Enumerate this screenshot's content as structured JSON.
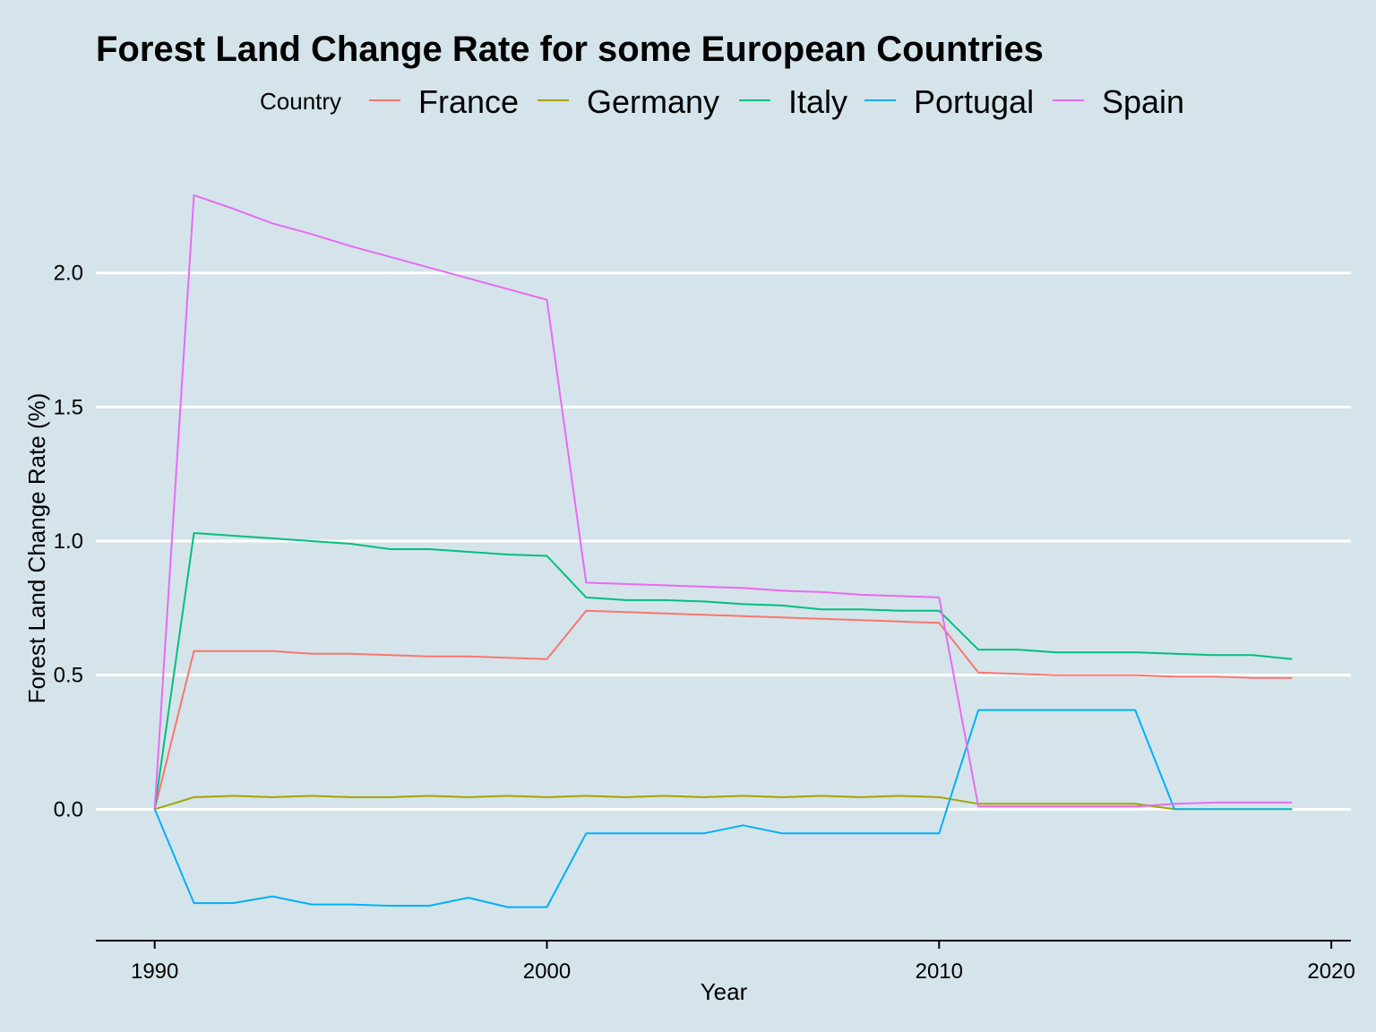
{
  "chart_data": {
    "type": "line",
    "title": "Forest Land Change Rate for some European Countries",
    "xlabel": "Year",
    "ylabel": "Forest Land Change Rate (%)",
    "legend_title": "Country",
    "legend_position": "top",
    "grid": "horizontal major lines only",
    "xlim": [
      1988.5,
      2020.5
    ],
    "ylim": [
      -0.49,
      2.45
    ],
    "x_ticks": [
      1990,
      2000,
      2010,
      2020
    ],
    "y_ticks": [
      0.0,
      0.5,
      1.0,
      1.5,
      2.0
    ],
    "y_tick_labels": [
      "0.0",
      "0.5",
      "1.0",
      "1.5",
      "2.0"
    ],
    "x": [
      1990,
      1991,
      1992,
      1993,
      1994,
      1995,
      1996,
      1997,
      1998,
      1999,
      2000,
      2001,
      2002,
      2003,
      2004,
      2005,
      2006,
      2007,
      2008,
      2009,
      2010,
      2011,
      2012,
      2013,
      2014,
      2015,
      2016,
      2017,
      2018,
      2019
    ],
    "series": [
      {
        "name": "France",
        "color": "#F8766D",
        "values": [
          0,
          0.59,
          0.59,
          0.59,
          0.58,
          0.58,
          0.575,
          0.57,
          0.57,
          0.565,
          0.56,
          0.74,
          0.735,
          0.73,
          0.725,
          0.72,
          0.715,
          0.71,
          0.705,
          0.7,
          0.695,
          0.51,
          0.505,
          0.5,
          0.5,
          0.5,
          0.495,
          0.495,
          0.49,
          0.49
        ]
      },
      {
        "name": "Germany",
        "color": "#A3A500",
        "values": [
          0,
          0.045,
          0.05,
          0.045,
          0.05,
          0.045,
          0.045,
          0.05,
          0.045,
          0.05,
          0.045,
          0.05,
          0.045,
          0.05,
          0.045,
          0.05,
          0.045,
          0.05,
          0.045,
          0.05,
          0.045,
          0.02,
          0.02,
          0.02,
          0.02,
          0.02,
          0.0,
          0.0,
          0.0,
          0.0
        ]
      },
      {
        "name": "Italy",
        "color": "#00BF7D",
        "values": [
          0,
          1.03,
          1.02,
          1.01,
          1.0,
          0.99,
          0.97,
          0.97,
          0.96,
          0.95,
          0.945,
          0.79,
          0.78,
          0.78,
          0.775,
          0.765,
          0.76,
          0.745,
          0.745,
          0.74,
          0.74,
          0.595,
          0.595,
          0.585,
          0.585,
          0.585,
          0.58,
          0.575,
          0.575,
          0.56
        ]
      },
      {
        "name": "Portugal",
        "color": "#00B0F6",
        "values": [
          0,
          -0.35,
          -0.35,
          -0.325,
          -0.355,
          -0.355,
          -0.36,
          -0.36,
          -0.33,
          -0.365,
          -0.365,
          -0.09,
          -0.09,
          -0.09,
          -0.09,
          -0.06,
          -0.09,
          -0.09,
          -0.09,
          -0.09,
          -0.09,
          0.37,
          0.37,
          0.37,
          0.37,
          0.37,
          0.0,
          0.0,
          0.0,
          0.0
        ]
      },
      {
        "name": "Spain",
        "color": "#E76BF3",
        "values": [
          0,
          2.29,
          2.24,
          2.185,
          2.145,
          2.1,
          2.06,
          2.02,
          1.98,
          1.94,
          1.9,
          0.845,
          0.84,
          0.835,
          0.83,
          0.825,
          0.815,
          0.81,
          0.8,
          0.795,
          0.79,
          0.01,
          0.01,
          0.01,
          0.01,
          0.01,
          0.02,
          0.025,
          0.025,
          0.025
        ]
      }
    ]
  }
}
